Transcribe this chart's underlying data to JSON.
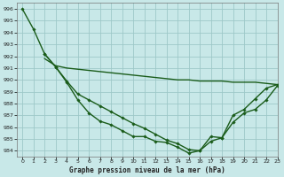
{
  "title": "Graphe pression niveau de la mer (hPa)",
  "background_color": "#c8e8e8",
  "grid_color": "#9ec8c8",
  "line_color": "#1a5c1a",
  "xlim": [
    -0.5,
    23
  ],
  "ylim": [
    983.5,
    996.5
  ],
  "yticks": [
    984,
    985,
    986,
    987,
    988,
    989,
    990,
    991,
    992,
    993,
    994,
    995,
    996
  ],
  "xticks": [
    0,
    1,
    2,
    3,
    4,
    5,
    6,
    7,
    8,
    9,
    10,
    11,
    12,
    13,
    14,
    15,
    16,
    17,
    18,
    19,
    20,
    21,
    22,
    23
  ],
  "series": [
    {
      "x": [
        0,
        1,
        2,
        3,
        4,
        5,
        6,
        7,
        8,
        9,
        10,
        11,
        12,
        13,
        14,
        15,
        16,
        17,
        18,
        19,
        20,
        21,
        22,
        23
      ],
      "y": [
        996.0,
        994.3,
        992.2,
        991.1,
        989.8,
        988.3,
        987.2,
        986.5,
        986.2,
        985.7,
        985.2,
        985.2,
        984.8,
        984.7,
        984.3,
        983.8,
        984.0,
        985.2,
        985.1,
        987.0,
        987.5,
        988.4,
        989.3,
        989.6
      ],
      "marker": "D",
      "markersize": 1.8,
      "linewidth": 1.0,
      "with_marker": true
    },
    {
      "x": [
        2,
        3,
        4,
        5,
        6,
        7,
        8,
        9,
        10,
        11,
        12,
        13,
        14,
        15,
        16,
        17,
        18,
        19,
        20,
        21,
        22,
        23
      ],
      "y": [
        991.8,
        991.2,
        991.0,
        990.9,
        990.8,
        990.7,
        990.6,
        990.5,
        990.4,
        990.3,
        990.2,
        990.1,
        990.0,
        990.0,
        989.9,
        989.9,
        989.9,
        989.8,
        989.8,
        989.8,
        989.7,
        989.6
      ],
      "marker": null,
      "markersize": 0,
      "linewidth": 1.0,
      "with_marker": false
    },
    {
      "x": [
        2,
        3,
        4,
        5,
        6,
        7,
        8,
        9,
        10,
        11,
        12,
        13,
        14,
        15,
        16,
        17,
        18,
        19,
        20,
        21,
        22,
        23
      ],
      "y": [
        992.2,
        991.1,
        989.9,
        988.8,
        988.3,
        987.8,
        987.3,
        986.8,
        986.3,
        985.9,
        985.4,
        984.9,
        984.6,
        984.1,
        984.0,
        984.8,
        985.1,
        986.4,
        987.2,
        987.5,
        988.3,
        989.5
      ],
      "marker": "D",
      "markersize": 1.8,
      "linewidth": 1.0,
      "with_marker": true
    }
  ]
}
